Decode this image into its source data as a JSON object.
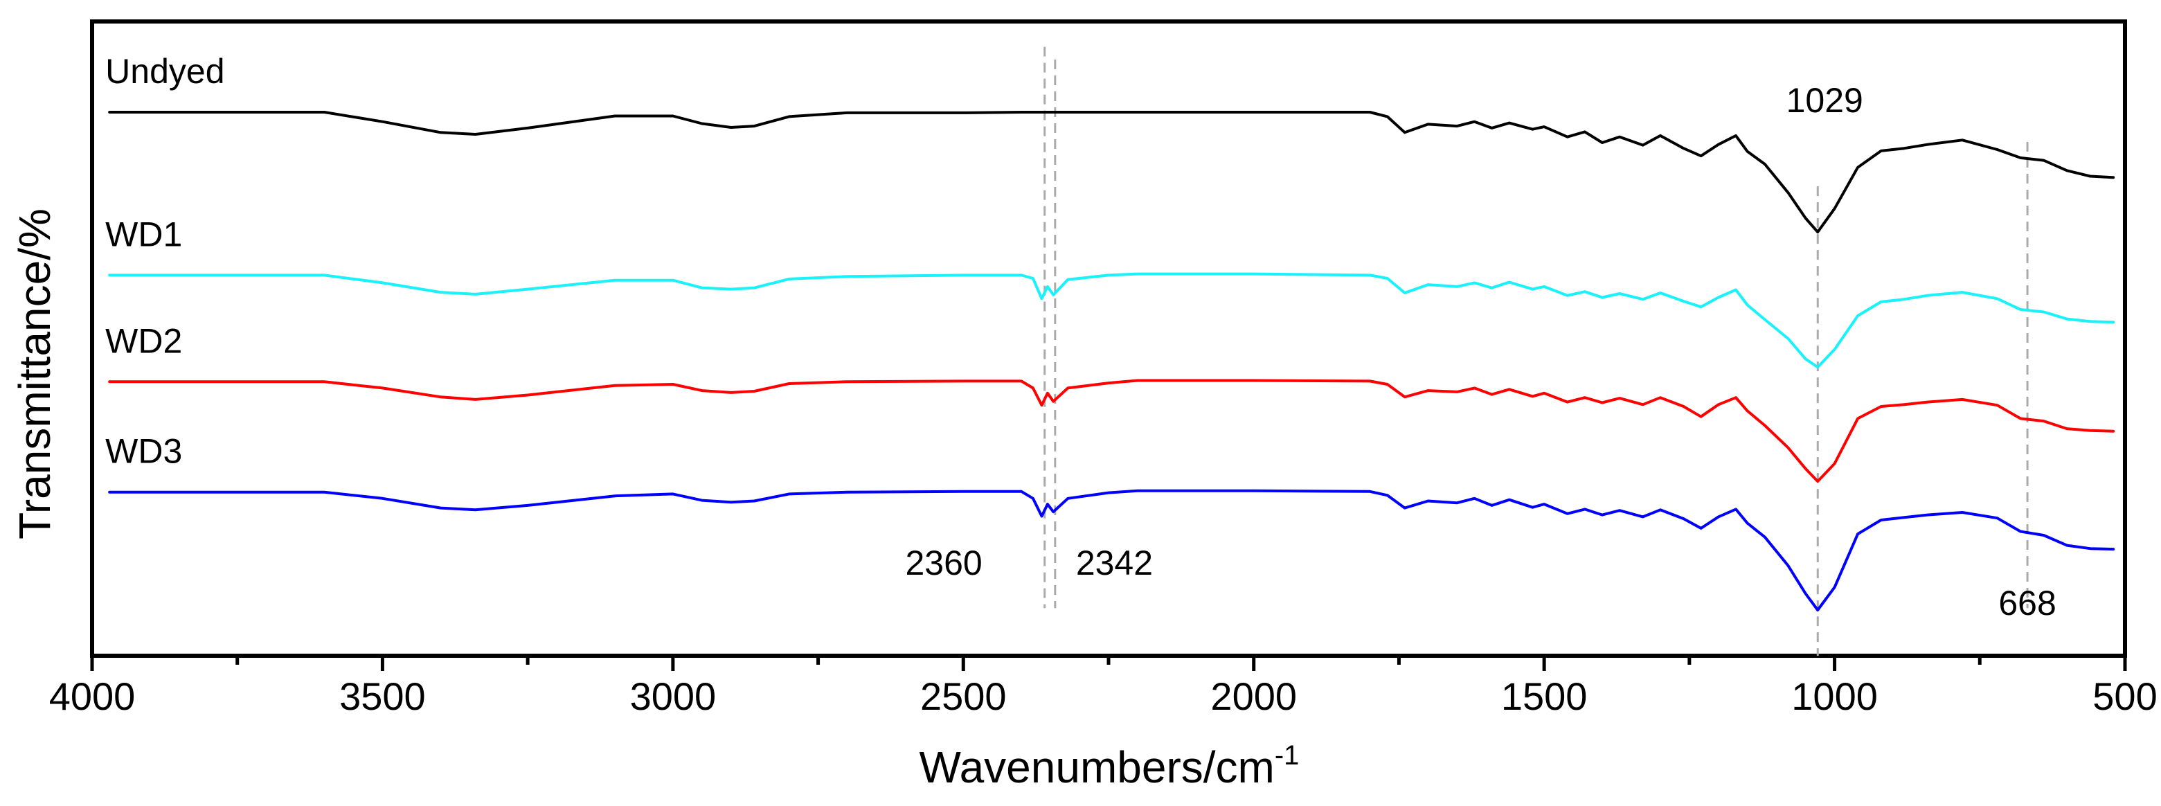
{
  "chart_data": {
    "type": "line",
    "title": "",
    "xlabel": "Wavenumbers/cm",
    "xlabel_superscript": "-1",
    "ylabel": "Transmittance/%",
    "xlim": [
      4000,
      500
    ],
    "ylim": [
      0,
      100
    ],
    "x_ticks": [
      4000,
      3500,
      3000,
      2500,
      2000,
      1500,
      1000,
      500
    ],
    "x_tick_labels": [
      "4000",
      "3500",
      "3000",
      "2500",
      "2000",
      "1500",
      "1000",
      "500"
    ],
    "legend": "none (series labelled inline at left)",
    "grid": false,
    "series": [
      {
        "name": "Undyed",
        "color": "#000000",
        "points": [
          [
            3970,
            85.7
          ],
          [
            3800,
            85.7
          ],
          [
            3600,
            85.7
          ],
          [
            3500,
            84.2
          ],
          [
            3400,
            82.5
          ],
          [
            3340,
            82.2
          ],
          [
            3250,
            83.2
          ],
          [
            3100,
            85.1
          ],
          [
            3000,
            85.1
          ],
          [
            2950,
            83.9
          ],
          [
            2900,
            83.3
          ],
          [
            2860,
            83.5
          ],
          [
            2800,
            85.0
          ],
          [
            2700,
            85.6
          ],
          [
            2500,
            85.6
          ],
          [
            2400,
            85.7
          ],
          [
            2200,
            85.7
          ],
          [
            2000,
            85.7
          ],
          [
            1800,
            85.7
          ],
          [
            1770,
            85.0
          ],
          [
            1740,
            82.5
          ],
          [
            1700,
            83.8
          ],
          [
            1650,
            83.5
          ],
          [
            1620,
            84.2
          ],
          [
            1590,
            83.2
          ],
          [
            1560,
            84.0
          ],
          [
            1520,
            83.0
          ],
          [
            1500,
            83.4
          ],
          [
            1460,
            81.8
          ],
          [
            1430,
            82.6
          ],
          [
            1400,
            80.9
          ],
          [
            1370,
            81.8
          ],
          [
            1330,
            80.5
          ],
          [
            1300,
            82.0
          ],
          [
            1260,
            80.0
          ],
          [
            1230,
            78.8
          ],
          [
            1200,
            80.6
          ],
          [
            1170,
            82.0
          ],
          [
            1150,
            79.5
          ],
          [
            1120,
            77.5
          ],
          [
            1080,
            73.0
          ],
          [
            1050,
            69.0
          ],
          [
            1029,
            66.8
          ],
          [
            1000,
            70.5
          ],
          [
            960,
            77.0
          ],
          [
            920,
            79.6
          ],
          [
            880,
            80.0
          ],
          [
            840,
            80.6
          ],
          [
            780,
            81.3
          ],
          [
            720,
            79.8
          ],
          [
            680,
            78.5
          ],
          [
            640,
            78.1
          ],
          [
            600,
            76.5
          ],
          [
            560,
            75.6
          ],
          [
            520,
            75.4
          ]
        ]
      },
      {
        "name": "WD1",
        "color": "#19f2fa",
        "points": [
          [
            3970,
            60.0
          ],
          [
            3800,
            60.0
          ],
          [
            3600,
            60.0
          ],
          [
            3500,
            58.8
          ],
          [
            3400,
            57.3
          ],
          [
            3340,
            57.0
          ],
          [
            3250,
            57.8
          ],
          [
            3100,
            59.2
          ],
          [
            3000,
            59.2
          ],
          [
            2950,
            58.0
          ],
          [
            2900,
            57.8
          ],
          [
            2860,
            58.0
          ],
          [
            2800,
            59.4
          ],
          [
            2700,
            59.8
          ],
          [
            2500,
            60.0
          ],
          [
            2400,
            60.0
          ],
          [
            2380,
            59.5
          ],
          [
            2365,
            56.3
          ],
          [
            2355,
            58.2
          ],
          [
            2345,
            56.9
          ],
          [
            2320,
            59.3
          ],
          [
            2250,
            60.0
          ],
          [
            2200,
            60.2
          ],
          [
            2000,
            60.2
          ],
          [
            1800,
            60.0
          ],
          [
            1770,
            59.5
          ],
          [
            1740,
            57.2
          ],
          [
            1700,
            58.5
          ],
          [
            1650,
            58.2
          ],
          [
            1620,
            58.8
          ],
          [
            1590,
            58.0
          ],
          [
            1560,
            58.9
          ],
          [
            1520,
            57.8
          ],
          [
            1500,
            58.2
          ],
          [
            1460,
            56.8
          ],
          [
            1430,
            57.4
          ],
          [
            1400,
            56.5
          ],
          [
            1370,
            57.1
          ],
          [
            1330,
            56.2
          ],
          [
            1300,
            57.2
          ],
          [
            1260,
            55.9
          ],
          [
            1230,
            55.0
          ],
          [
            1200,
            56.5
          ],
          [
            1170,
            57.7
          ],
          [
            1150,
            55.3
          ],
          [
            1120,
            53.0
          ],
          [
            1080,
            50.0
          ],
          [
            1050,
            46.8
          ],
          [
            1029,
            45.5
          ],
          [
            1000,
            48.3
          ],
          [
            960,
            53.6
          ],
          [
            920,
            55.8
          ],
          [
            880,
            56.2
          ],
          [
            840,
            56.8
          ],
          [
            780,
            57.3
          ],
          [
            720,
            56.3
          ],
          [
            680,
            54.6
          ],
          [
            640,
            54.2
          ],
          [
            600,
            53.1
          ],
          [
            560,
            52.7
          ],
          [
            520,
            52.6
          ]
        ]
      },
      {
        "name": "WD2",
        "color": "#ff0000",
        "points": [
          [
            3970,
            43.2
          ],
          [
            3800,
            43.2
          ],
          [
            3600,
            43.2
          ],
          [
            3500,
            42.2
          ],
          [
            3400,
            40.8
          ],
          [
            3340,
            40.4
          ],
          [
            3250,
            41.1
          ],
          [
            3100,
            42.6
          ],
          [
            3000,
            42.8
          ],
          [
            2950,
            41.8
          ],
          [
            2900,
            41.5
          ],
          [
            2860,
            41.7
          ],
          [
            2800,
            42.9
          ],
          [
            2700,
            43.2
          ],
          [
            2500,
            43.3
          ],
          [
            2400,
            43.3
          ],
          [
            2380,
            42.2
          ],
          [
            2365,
            39.5
          ],
          [
            2355,
            41.4
          ],
          [
            2345,
            40.1
          ],
          [
            2320,
            42.2
          ],
          [
            2250,
            43.0
          ],
          [
            2200,
            43.4
          ],
          [
            2000,
            43.4
          ],
          [
            1800,
            43.3
          ],
          [
            1770,
            42.8
          ],
          [
            1740,
            40.8
          ],
          [
            1700,
            41.8
          ],
          [
            1650,
            41.6
          ],
          [
            1620,
            42.2
          ],
          [
            1590,
            41.2
          ],
          [
            1560,
            42.0
          ],
          [
            1520,
            40.9
          ],
          [
            1500,
            41.4
          ],
          [
            1460,
            40.0
          ],
          [
            1430,
            40.7
          ],
          [
            1400,
            39.9
          ],
          [
            1370,
            40.6
          ],
          [
            1330,
            39.6
          ],
          [
            1300,
            40.7
          ],
          [
            1260,
            39.3
          ],
          [
            1230,
            37.7
          ],
          [
            1200,
            39.6
          ],
          [
            1170,
            40.7
          ],
          [
            1150,
            38.6
          ],
          [
            1120,
            36.3
          ],
          [
            1080,
            32.8
          ],
          [
            1050,
            29.5
          ],
          [
            1029,
            27.5
          ],
          [
            1000,
            30.3
          ],
          [
            960,
            37.4
          ],
          [
            920,
            39.3
          ],
          [
            880,
            39.6
          ],
          [
            840,
            40.0
          ],
          [
            780,
            40.4
          ],
          [
            720,
            39.5
          ],
          [
            680,
            37.4
          ],
          [
            640,
            37.0
          ],
          [
            600,
            35.8
          ],
          [
            560,
            35.5
          ],
          [
            520,
            35.4
          ]
        ]
      },
      {
        "name": "WD3",
        "color": "#0000ff",
        "points": [
          [
            3970,
            25.8
          ],
          [
            3800,
            25.8
          ],
          [
            3600,
            25.8
          ],
          [
            3500,
            24.8
          ],
          [
            3400,
            23.3
          ],
          [
            3340,
            23.0
          ],
          [
            3250,
            23.7
          ],
          [
            3100,
            25.2
          ],
          [
            3000,
            25.5
          ],
          [
            2950,
            24.5
          ],
          [
            2900,
            24.2
          ],
          [
            2860,
            24.4
          ],
          [
            2800,
            25.5
          ],
          [
            2700,
            25.8
          ],
          [
            2500,
            25.9
          ],
          [
            2400,
            25.9
          ],
          [
            2380,
            24.8
          ],
          [
            2365,
            22.0
          ],
          [
            2355,
            23.9
          ],
          [
            2345,
            22.7
          ],
          [
            2320,
            24.8
          ],
          [
            2250,
            25.7
          ],
          [
            2200,
            26.0
          ],
          [
            2000,
            26.0
          ],
          [
            1800,
            25.9
          ],
          [
            1770,
            25.3
          ],
          [
            1740,
            23.3
          ],
          [
            1700,
            24.4
          ],
          [
            1650,
            24.1
          ],
          [
            1620,
            24.8
          ],
          [
            1590,
            23.7
          ],
          [
            1560,
            24.6
          ],
          [
            1520,
            23.4
          ],
          [
            1500,
            23.9
          ],
          [
            1460,
            22.4
          ],
          [
            1430,
            23.1
          ],
          [
            1400,
            22.2
          ],
          [
            1370,
            22.9
          ],
          [
            1330,
            21.9
          ],
          [
            1300,
            23.0
          ],
          [
            1260,
            21.6
          ],
          [
            1230,
            20.1
          ],
          [
            1200,
            21.9
          ],
          [
            1170,
            23.1
          ],
          [
            1150,
            20.9
          ],
          [
            1120,
            18.7
          ],
          [
            1080,
            14.2
          ],
          [
            1050,
            9.8
          ],
          [
            1029,
            7.2
          ],
          [
            1000,
            10.8
          ],
          [
            960,
            19.2
          ],
          [
            920,
            21.4
          ],
          [
            880,
            21.8
          ],
          [
            840,
            22.2
          ],
          [
            780,
            22.6
          ],
          [
            720,
            21.7
          ],
          [
            680,
            19.6
          ],
          [
            640,
            19.0
          ],
          [
            600,
            17.4
          ],
          [
            560,
            16.9
          ],
          [
            520,
            16.8
          ]
        ]
      }
    ],
    "reference_lines": [
      {
        "x": 2360,
        "label": "2360",
        "color": "#aaaaaa",
        "y_range": [
          7.5,
          96.0
        ]
      },
      {
        "x": 2342,
        "label": "2342",
        "color": "#aaaaaa",
        "y_range": [
          7.5,
          94.0
        ]
      },
      {
        "x": 1029,
        "label": "1029",
        "color": "#aaaaaa",
        "y_range": [
          0,
          74.0
        ]
      },
      {
        "x": 668,
        "label": "668",
        "color": "#aaaaaa",
        "y_range": [
          7.5,
          81.0
        ]
      }
    ]
  }
}
